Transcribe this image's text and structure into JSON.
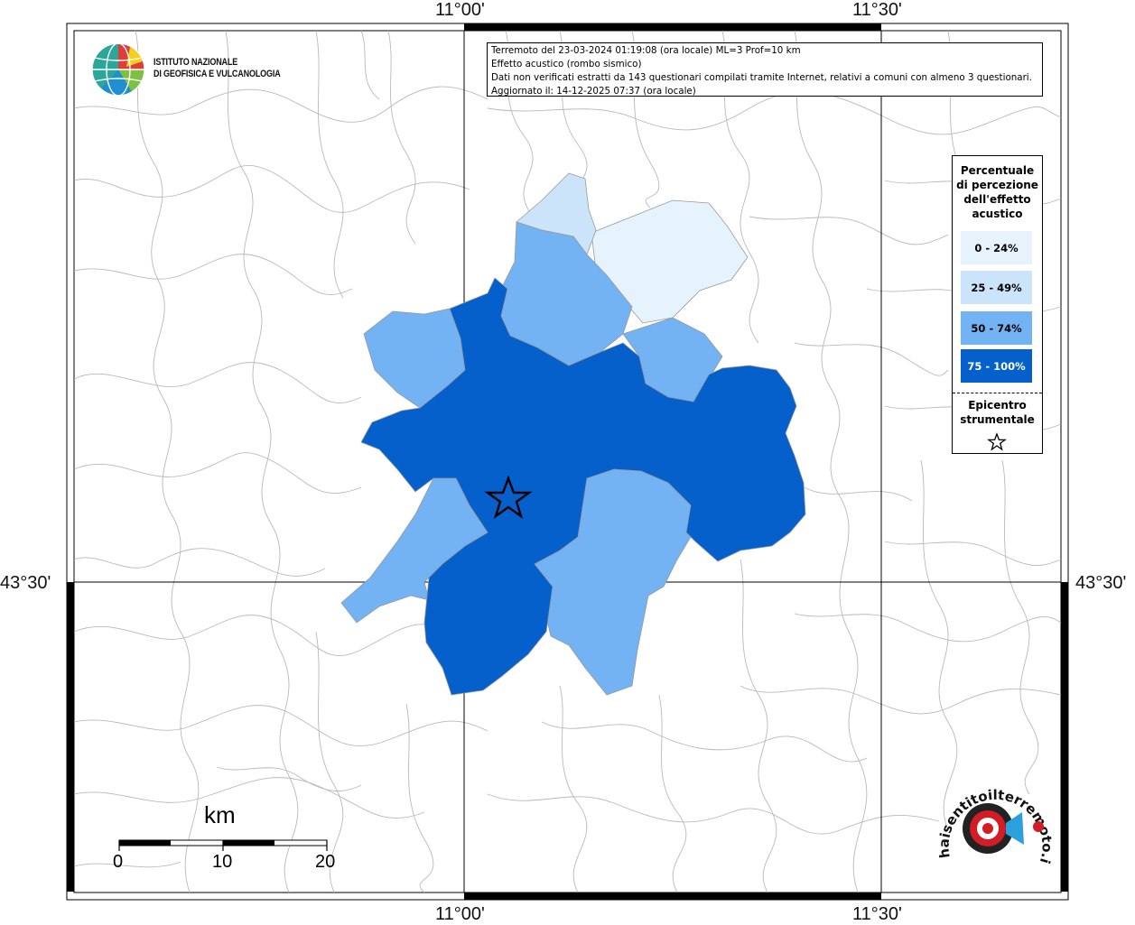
{
  "logo": {
    "line1": "ISTITUTO NAZIONALE",
    "line2": "DI GEOFISICA E VULCANOLOGIA"
  },
  "info": {
    "line1": "Terremoto del 23-03-2024 01:19:08 (ora locale) ML=3 Prof=10 km",
    "line2": "Effetto acustico (rombo sismico)",
    "line3": "Dati non verificati estratti da 143 questionari compilati tramite Internet, relativi a comuni con almeno 3 questionari.",
    "line4": "Aggiornato il: 14-12-2025 07:37 (ora locale)"
  },
  "coords": {
    "top_left": "11°00'",
    "top_right": "11°30'",
    "bottom_left": "11°00'",
    "bottom_right": "11°30'",
    "lat_left": "43°30'",
    "lat_right": "43°30'"
  },
  "legend": {
    "title_lines": [
      "Percentuale",
      "di percezione",
      "dell'effetto",
      "acustico"
    ],
    "classes": [
      {
        "label": "0 - 24%",
        "color": "#e6f3fc",
        "text_color": "#000000"
      },
      {
        "label": "25 - 49%",
        "color": "#cce4f9",
        "text_color": "#000000"
      },
      {
        "label": "50 - 74%",
        "color": "#73b2f3",
        "text_color": "#000000"
      },
      {
        "label": "75 - 100%",
        "color": "#0560cc",
        "text_color": "#ffffff"
      }
    ],
    "epicenter_lines": [
      "Epicentro",
      "strumentale"
    ],
    "epicenter_icon": "star-outline-icon"
  },
  "scale": {
    "unit": "km",
    "ticks": [
      "0",
      "10",
      "20"
    ]
  },
  "watermark": {
    "text": "haisentitoilterremoto.it ? www."
  }
}
